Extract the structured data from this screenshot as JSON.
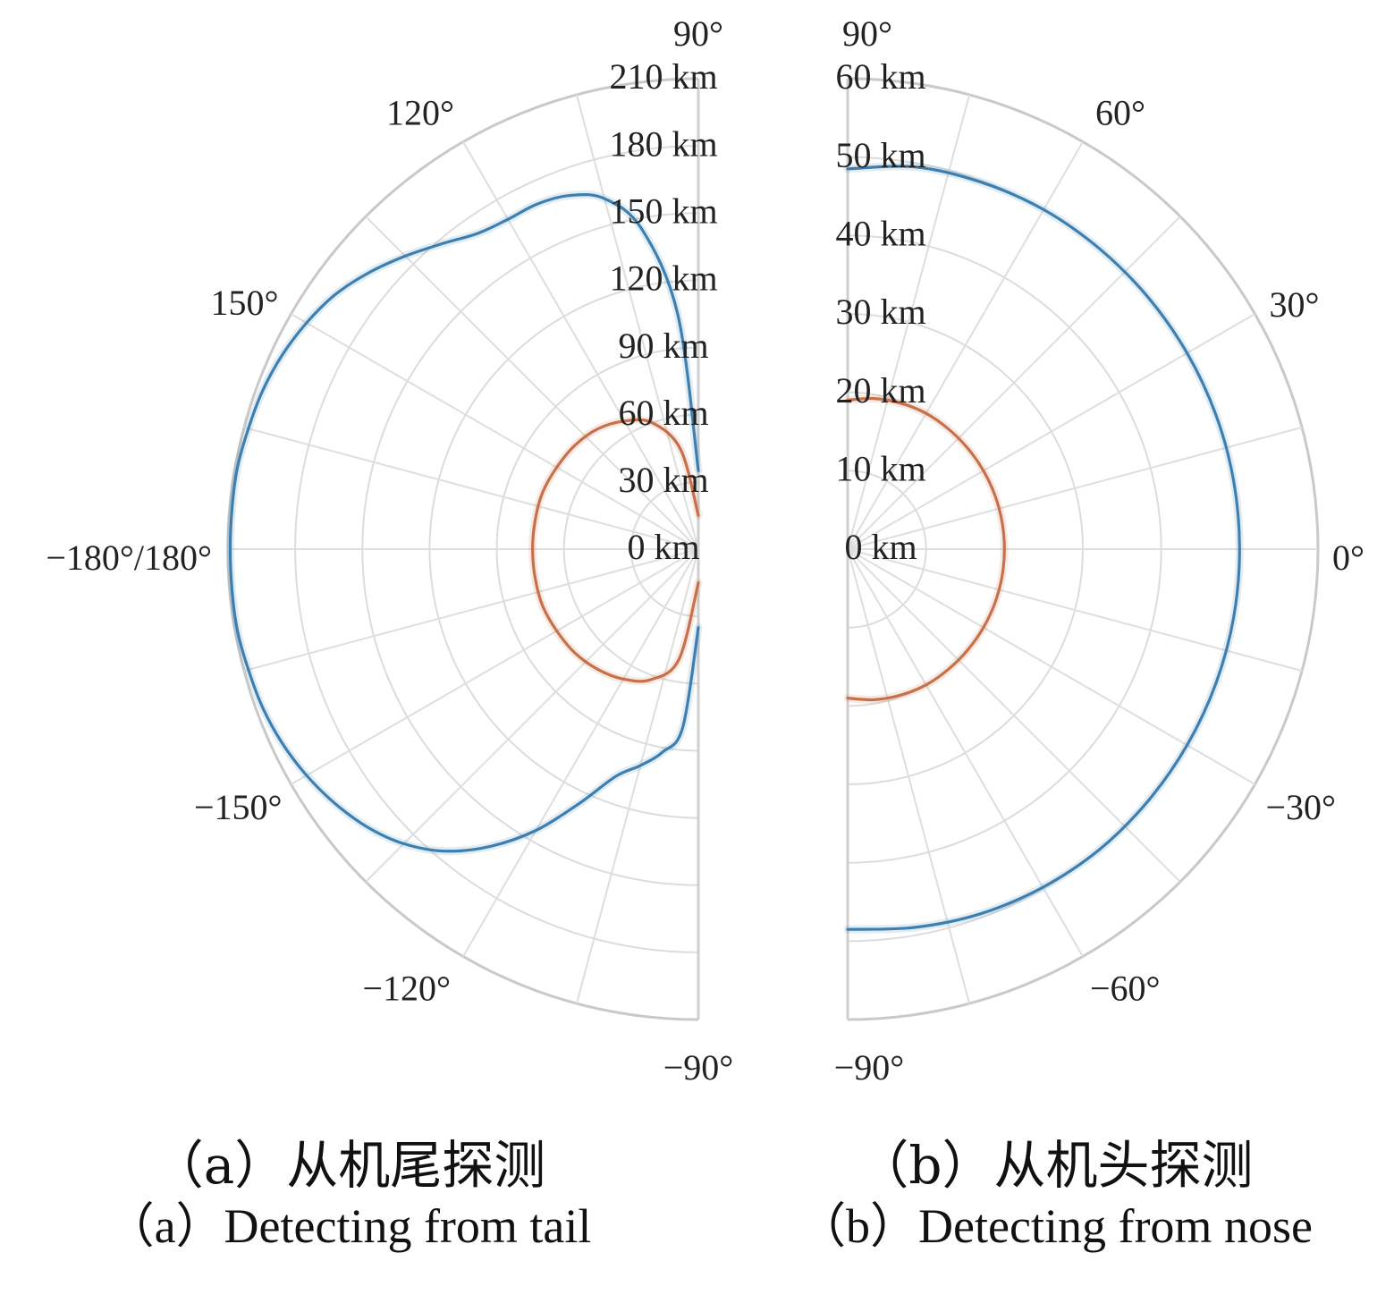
{
  "chart_data": [
    {
      "type": "polar-line",
      "panel": "a",
      "theta_range_deg": [
        90,
        270
      ],
      "r_range_km": [
        0,
        210
      ],
      "r_ticks": [
        0,
        30,
        60,
        90,
        120,
        150,
        180,
        210
      ],
      "r_tick_labels": [
        "0 km",
        "30 km",
        "60 km",
        "90 km",
        "120 km",
        "150 km",
        "180 km",
        "210 km"
      ],
      "theta_ticks_deg": [
        90,
        120,
        150,
        180,
        210,
        240,
        270
      ],
      "theta_tick_labels": [
        "90°",
        "120°",
        "150°",
        "−180°/180°",
        "−150°",
        "−120°",
        "−90°"
      ],
      "grid": true,
      "series": [
        {
          "color": "#3d7fb0",
          "theta_deg": [
            90,
            95,
            100,
            105,
            110,
            115,
            120,
            125,
            130,
            135,
            140,
            145,
            150,
            155,
            160,
            165,
            170,
            175,
            180,
            185,
            190,
            195,
            200,
            205,
            210,
            215,
            220,
            225,
            230,
            235,
            240,
            245,
            250,
            255,
            260,
            265,
            270
          ],
          "r_km": [
            35,
            105,
            145,
            162,
            168,
            170,
            170,
            172,
            178,
            185,
            192,
            198,
            202,
            205,
            207,
            208,
            209,
            209,
            209,
            209,
            209,
            208,
            207,
            205,
            202,
            198,
            193,
            186,
            176,
            162,
            145,
            125,
            108,
            100,
            92,
            80,
            35
          ]
        },
        {
          "color": "#c8704a",
          "theta_deg": [
            90,
            100,
            110,
            120,
            130,
            140,
            150,
            160,
            170,
            180,
            190,
            200,
            210,
            220,
            230,
            240,
            250,
            260,
            270
          ],
          "r_km": [
            15,
            45,
            60,
            66,
            70,
            72,
            73,
            74,
            74,
            74,
            74,
            74,
            73,
            72,
            70,
            67,
            62,
            50,
            15
          ]
        }
      ]
    },
    {
      "type": "polar-line",
      "panel": "b",
      "theta_range_deg": [
        -90,
        90
      ],
      "r_range_km": [
        0,
        60
      ],
      "r_ticks": [
        0,
        10,
        20,
        30,
        40,
        50,
        60
      ],
      "r_tick_labels": [
        "0 km",
        "10 km",
        "20 km",
        "30 km",
        "40 km",
        "50 km",
        "60 km"
      ],
      "theta_ticks_deg": [
        90,
        60,
        30,
        0,
        -30,
        -60,
        -90
      ],
      "theta_tick_labels": [
        "90°",
        "60°",
        "30°",
        "0°",
        "−30°",
        "−60°",
        "−90°"
      ],
      "grid": true,
      "series": [
        {
          "color": "#3d7fb0",
          "theta_deg": [
            -90,
            -80,
            -70,
            -60,
            -50,
            -40,
            -30,
            -20,
            -10,
            0,
            10,
            20,
            30,
            40,
            50,
            60,
            70,
            80,
            90
          ],
          "r_km": [
            48.5,
            49,
            49.5,
            49.8,
            50,
            50,
            50,
            50,
            50,
            50,
            50,
            50,
            50,
            50,
            50,
            50,
            49.8,
            49.5,
            48.5
          ]
        },
        {
          "color": "#c8704a",
          "theta_deg": [
            -90,
            -80,
            -70,
            -60,
            -50,
            -40,
            -30,
            -20,
            -10,
            0,
            10,
            20,
            30,
            40,
            50,
            60,
            70,
            80,
            90
          ],
          "r_km": [
            19,
            19.5,
            19.8,
            20,
            20,
            20,
            20,
            20,
            20,
            20,
            20,
            20,
            20,
            20,
            20,
            20,
            19.8,
            19.5,
            19
          ]
        }
      ]
    }
  ],
  "captions": {
    "a_cn": "（a）从机尾探测",
    "a_en": "（a）Detecting from tail",
    "b_cn": "（b）从机头探测",
    "b_en": "（b）Detecting from nose"
  }
}
